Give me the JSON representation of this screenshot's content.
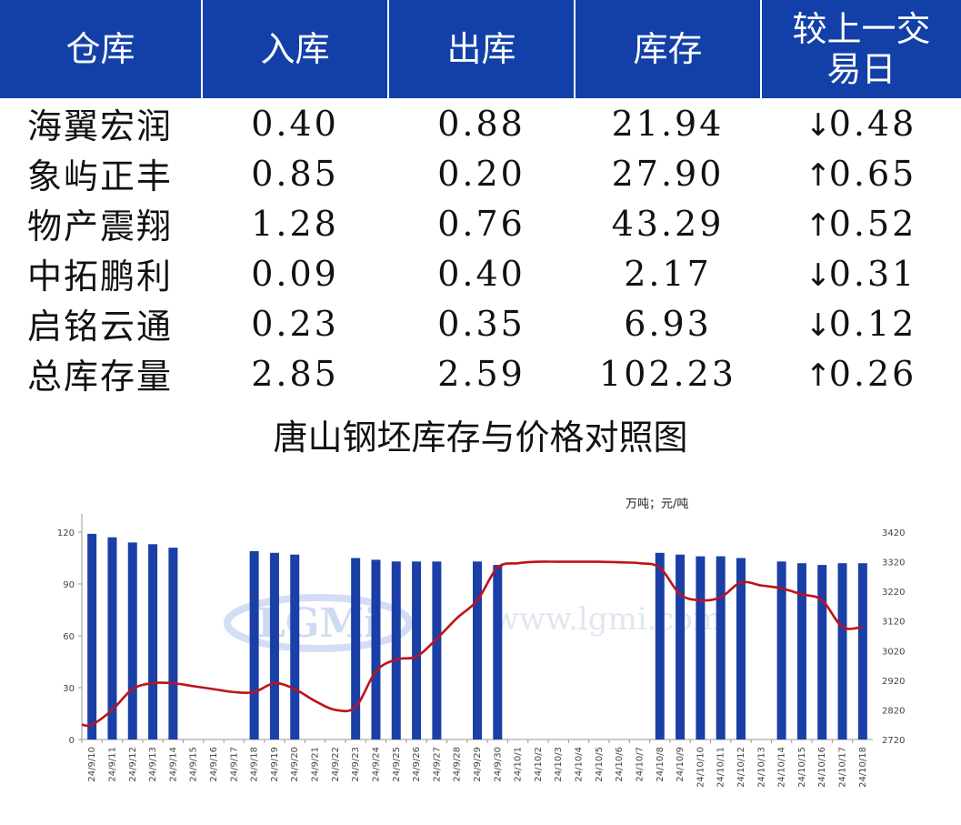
{
  "table": {
    "headers": [
      "仓库",
      "入库",
      "出库",
      "库存",
      "较上一交易日"
    ],
    "rows": [
      {
        "name": "海翼宏润",
        "in": "0.40",
        "out": "0.88",
        "stock": "21.94",
        "dir": "down",
        "change": "0.48"
      },
      {
        "name": "象屿正丰",
        "in": "0.85",
        "out": "0.20",
        "stock": "27.90",
        "dir": "up",
        "change": "0.65"
      },
      {
        "name": "物产震翔",
        "in": "1.28",
        "out": "0.76",
        "stock": "43.29",
        "dir": "up",
        "change": "0.52"
      },
      {
        "name": "中拓鹏利",
        "in": "0.09",
        "out": "0.40",
        "stock": "2.17",
        "dir": "down",
        "change": "0.31"
      },
      {
        "name": "启铭云通",
        "in": "0.23",
        "out": "0.35",
        "stock": "6.93",
        "dir": "down",
        "change": "0.12"
      },
      {
        "name": "总库存量",
        "in": "2.85",
        "out": "2.59",
        "stock": "102.23",
        "dir": "up",
        "change": "0.26"
      }
    ],
    "colors": {
      "header_bg": "#1340a8",
      "up": "#e21a1a",
      "down": "#0e9a3c"
    }
  },
  "chart_data": {
    "type": "bar",
    "title": "唐山钢坯库存与价格对照图",
    "unit_label": "万吨；元/吨",
    "watermark": "www.lgmi.com",
    "watermark_logo": "LGMi",
    "categories": [
      "24/9/10",
      "24/9/11",
      "24/9/12",
      "24/9/13",
      "24/9/14",
      "24/9/15",
      "24/9/16",
      "24/9/17",
      "24/9/18",
      "24/9/19",
      "24/9/20",
      "24/9/21",
      "24/9/22",
      "24/9/23",
      "24/9/24",
      "24/9/25",
      "24/9/26",
      "24/9/27",
      "24/9/28",
      "24/9/29",
      "24/9/30",
      "24/10/1",
      "24/10/2",
      "24/10/3",
      "24/10/4",
      "24/10/5",
      "24/10/6",
      "24/10/7",
      "24/10/8",
      "24/10/9",
      "24/10/10",
      "24/10/11",
      "24/10/12",
      "24/10/13",
      "24/10/14",
      "24/10/15",
      "24/10/16",
      "24/10/17",
      "24/10/18"
    ],
    "series": [
      {
        "type": "bar",
        "axis": "left",
        "color": "#1a3fa6",
        "values": [
          119,
          117,
          114,
          113,
          111,
          null,
          null,
          null,
          109,
          108,
          107,
          null,
          null,
          105,
          104,
          103,
          103,
          103,
          null,
          103,
          101,
          null,
          null,
          null,
          null,
          null,
          null,
          null,
          108,
          107,
          106,
          106,
          105,
          null,
          103,
          102,
          101,
          102,
          102
        ]
      },
      {
        "type": "line",
        "axis": "right",
        "color": "#c0121a",
        "values": [
          2770,
          2820,
          2890,
          2910,
          2910,
          2900,
          2890,
          2880,
          2880,
          2910,
          2890,
          2850,
          2820,
          2830,
          2950,
          2990,
          3000,
          3060,
          3130,
          3190,
          3300,
          3315,
          3320,
          3320,
          3320,
          3320,
          3318,
          3315,
          3300,
          3210,
          3190,
          3200,
          3250,
          3240,
          3230,
          3210,
          3190,
          3100,
          3100
        ]
      }
    ],
    "y_left": {
      "min": 0,
      "max": 120,
      "ticks": [
        0,
        30,
        60,
        90,
        120
      ]
    },
    "y_right": {
      "min": 2720,
      "max": 3420,
      "ticks": [
        2720,
        2820,
        2920,
        3020,
        3120,
        3220,
        3320,
        3420
      ]
    },
    "grid": false
  }
}
